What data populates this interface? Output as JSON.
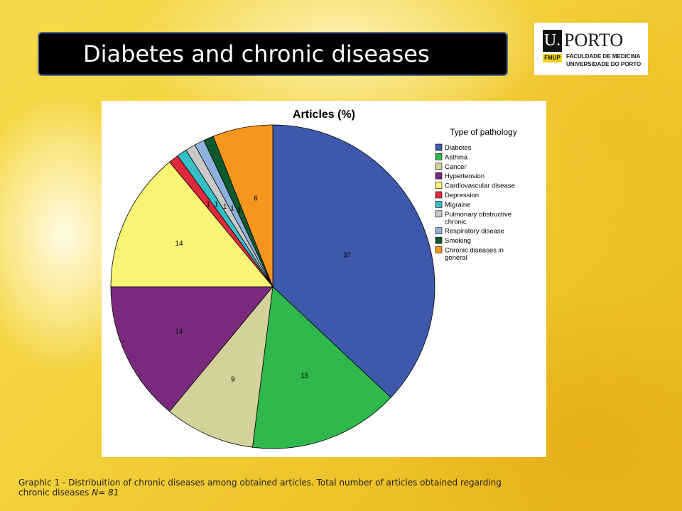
{
  "header": {
    "title": "Diabetes and chronic diseases"
  },
  "logo": {
    "mark": "U.",
    "word": "PORTO",
    "badge": "FMUP",
    "line1": "FACULDADE DE MEDICINA",
    "line2": "UNIVERSIDADE DO PORTO"
  },
  "caption": {
    "text": "Graphic 1 - Distribuition of  chronic diseases among obtained articles. Total number of articles obtained regarding chronic diseases ",
    "n_label": "N= 81"
  },
  "chart_data": {
    "type": "pie",
    "title": "Articles (%)",
    "legend_title": "Type of pathology",
    "legend_position": "right",
    "start_angle_deg": 0,
    "direction": "clockwise",
    "slices": [
      {
        "label": "Diabetes",
        "value": 37,
        "color": "#3e59ab"
      },
      {
        "label": "Asthma",
        "value": 15,
        "color": "#2fb84c"
      },
      {
        "label": "Cancer",
        "value": 9,
        "color": "#d4d19a"
      },
      {
        "label": "Hypertension",
        "value": 14,
        "color": "#7a2a7d"
      },
      {
        "label": "Cardiovascular disease",
        "value": 14,
        "color": "#f8f476"
      },
      {
        "label": "Depression",
        "value": 1,
        "color": "#e0283c"
      },
      {
        "label": "Migraine",
        "value": 1,
        "color": "#36bfc7"
      },
      {
        "label": "Pulmonary obstructive chronic",
        "value": 1,
        "color": "#c9c9c9"
      },
      {
        "label": "Respiratory disease",
        "value": 1,
        "color": "#8fb1dd"
      },
      {
        "label": "Smoking",
        "value": 1,
        "color": "#0d5a2c"
      },
      {
        "label": "Chronic diseases in general",
        "value": 6,
        "color": "#f7961f"
      }
    ]
  }
}
